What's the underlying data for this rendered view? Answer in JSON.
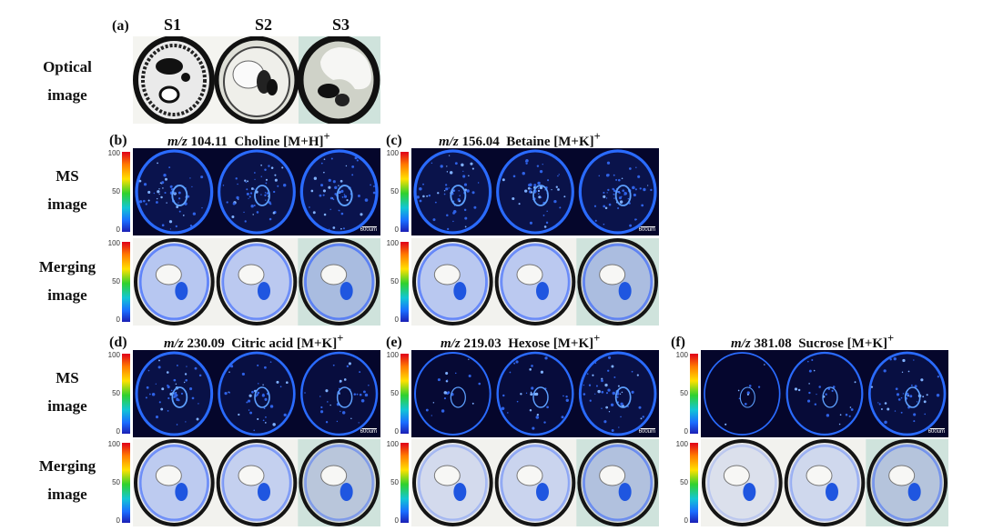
{
  "panel_a": {
    "letter": "(a)",
    "columns": [
      "S1",
      "S2",
      "S3"
    ],
    "row_label_line1": "Optical",
    "row_label_line2": "image"
  },
  "row_labels": {
    "ms_line1": "MS",
    "ms_line2": "image",
    "merge_line1": "Merging",
    "merge_line2": "image"
  },
  "colorbar_ticks": [
    "100",
    "50",
    "0"
  ],
  "scale_label": "600um",
  "panels": [
    {
      "letter": "(b)",
      "mz_prefix": "m/z",
      "mz": "104.11",
      "compound": "Choline [M+H]",
      "charge": "+"
    },
    {
      "letter": "(c)",
      "mz_prefix": "m/z",
      "mz": "156.04",
      "compound": "Betaine [M+K]",
      "charge": "+"
    },
    {
      "letter": "(d)",
      "mz_prefix": "m/z",
      "mz": "230.09",
      "compound": "Citric acid [M+K]",
      "charge": "+"
    },
    {
      "letter": "(e)",
      "mz_prefix": "m/z",
      "mz": "219.03",
      "compound": "Hexose [M+K]",
      "charge": "+"
    },
    {
      "letter": "(f)",
      "mz_prefix": "m/z",
      "mz": "381.08",
      "compound": "Sucrose [M+K]",
      "charge": "+"
    }
  ],
  "colors": {
    "ms_background": "#05062b",
    "ms_signal": "#2a6bff",
    "optical_bg": "#f2f2ee",
    "tissue_dark": "#151515"
  }
}
